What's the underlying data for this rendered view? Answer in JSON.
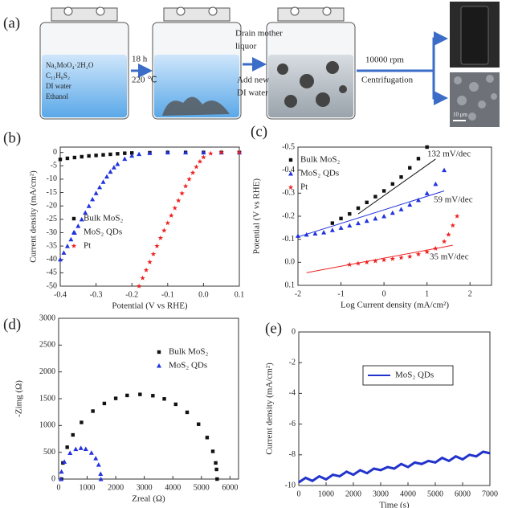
{
  "schematic": {
    "label": "(a)",
    "solution": [
      "Na₂MoO₄·2H₂O",
      "C₁₁H₈S₂",
      "DI water",
      "Ethanol"
    ],
    "step1": [
      "18 h",
      "220 ℃"
    ],
    "step2": [
      "Drain mother",
      "liquor",
      "Add new",
      "DI water"
    ],
    "step3": [
      "10000 rpm",
      "Centrifugation"
    ],
    "scale_bar": "10 μm"
  },
  "chart_data": [
    {
      "type": "scatter",
      "label": "(b)",
      "xlabel": "Potential (V vs RHE)",
      "ylabel": "Current density  (mA/cm²)",
      "xlim": [
        -0.4,
        0.1
      ],
      "xticks": [
        -0.4,
        -0.3,
        -0.2,
        -0.1,
        {
          "value": 0,
          "label": "0.0"
        },
        0.1
      ],
      "ylim": [
        -50,
        2
      ],
      "yticks": [
        0,
        -5,
        -10,
        -15,
        -20,
        -25,
        -30,
        -35,
        -40,
        -45,
        -50
      ],
      "series": [
        {
          "name": "Bulk MoS₂",
          "color": "#111111",
          "marker": "square",
          "x": [
            -0.4,
            -0.38,
            -0.36,
            -0.34,
            -0.32,
            -0.3,
            -0.28,
            -0.26,
            -0.24,
            -0.22,
            -0.2,
            -0.15,
            -0.1,
            -0.05,
            0,
            0.05,
            0.1
          ],
          "values": [
            -2.6,
            -2.2,
            -1.9,
            -1.6,
            -1.3,
            -1.1,
            -0.9,
            -0.7,
            -0.5,
            -0.3,
            -0.2,
            -0.1,
            0,
            0,
            0,
            0,
            0
          ]
        },
        {
          "name": "MoS₂ QDs",
          "color": "#2233dd",
          "marker": "triangle",
          "x": [
            -0.4,
            -0.39,
            -0.38,
            -0.37,
            -0.36,
            -0.35,
            -0.34,
            -0.33,
            -0.32,
            -0.31,
            -0.3,
            -0.29,
            -0.28,
            -0.27,
            -0.26,
            -0.25,
            -0.24,
            -0.22,
            -0.2,
            -0.18,
            -0.15,
            -0.1,
            -0.05,
            0,
            0.05,
            0.1
          ],
          "values": [
            -40,
            -37.5,
            -35,
            -32.5,
            -30,
            -27.5,
            -25,
            -22.5,
            -20,
            -17.5,
            -15.2,
            -13,
            -11,
            -9,
            -7.2,
            -5.6,
            -4.3,
            -2.4,
            -1.2,
            -0.6,
            -0.2,
            0,
            0,
            0,
            0,
            0
          ]
        },
        {
          "name": "Pt",
          "color": "#ee2222",
          "marker": "star",
          "x": [
            -0.18,
            -0.17,
            -0.16,
            -0.15,
            -0.14,
            -0.13,
            -0.12,
            -0.11,
            -0.1,
            -0.09,
            -0.08,
            -0.07,
            -0.06,
            -0.05,
            -0.04,
            -0.03,
            -0.02,
            -0.01,
            0,
            0.02,
            0.05,
            0.1
          ],
          "values": [
            -50,
            -47,
            -44,
            -41,
            -38,
            -35,
            -32,
            -29.2,
            -26.4,
            -23.6,
            -20.8,
            -18,
            -15.3,
            -12.6,
            -10,
            -7.6,
            -5.4,
            -3.4,
            -1.8,
            -0.4,
            0,
            0
          ]
        }
      ]
    },
    {
      "type": "scatter",
      "label": "(c)",
      "xlabel": "Log Current density  (mA/cm²)",
      "ylabel": "Potential (V vs RHE)",
      "xlim": [
        -2,
        2.5
      ],
      "xticks": [
        -2,
        -1,
        0,
        1,
        2
      ],
      "ylim": [
        0.1,
        -0.5
      ],
      "yticks": [
        0.1,
        {
          "value": 0,
          "label": "0.0"
        },
        -0.1,
        -0.2,
        -0.3,
        -0.4,
        -0.5
      ],
      "series": [
        {
          "name": "Bulk MoS₂",
          "color": "#111111",
          "marker": "square",
          "x": [
            -1.2,
            -1.0,
            -0.8,
            -0.6,
            -0.4,
            -0.2,
            0,
            0.2,
            0.4,
            0.6,
            0.8,
            1.0
          ],
          "values": [
            -0.17,
            -0.19,
            -0.21,
            -0.235,
            -0.26,
            -0.285,
            -0.31,
            -0.34,
            -0.37,
            -0.41,
            -0.45,
            -0.5
          ]
        },
        {
          "name": "MoS₂ QDs",
          "color": "#2233dd",
          "marker": "triangle",
          "x": [
            -2,
            -1.8,
            -1.6,
            -1.4,
            -1.2,
            -1,
            -0.8,
            -0.6,
            -0.4,
            -0.2,
            0,
            0.2,
            0.4,
            0.6,
            0.8,
            1,
            1.2,
            1.4
          ],
          "values": [
            -0.115,
            -0.12,
            -0.125,
            -0.13,
            -0.14,
            -0.15,
            -0.16,
            -0.17,
            -0.18,
            -0.19,
            -0.2,
            -0.215,
            -0.23,
            -0.25,
            -0.27,
            -0.3,
            -0.34,
            -0.4
          ]
        },
        {
          "name": "Pt",
          "color": "#ee2222",
          "marker": "star",
          "x": [
            -0.8,
            -0.6,
            -0.4,
            -0.2,
            0,
            0.2,
            0.4,
            0.6,
            0.8,
            1.0,
            1.2,
            1.4,
            1.5,
            1.6,
            1.7
          ],
          "values": [
            0.01,
            0.005,
            0,
            -0.005,
            -0.01,
            -0.015,
            -0.02,
            -0.025,
            -0.035,
            -0.045,
            -0.06,
            -0.09,
            -0.12,
            -0.16,
            -0.2
          ]
        }
      ],
      "fits": [
        {
          "color": "#111111",
          "x": [
            -0.6,
            1.2
          ],
          "values": [
            -0.21,
            -0.448
          ]
        },
        {
          "color": "#2233dd",
          "x": [
            -2,
            1.4
          ],
          "values": [
            -0.11,
            -0.31
          ]
        },
        {
          "color": "#ee2222",
          "x": [
            -1.8,
            1.6
          ],
          "values": [
            0.045,
            -0.074
          ]
        }
      ],
      "annotations": [
        "132 mV/dec",
        "59 mV/dec",
        "35 mV/dec"
      ]
    },
    {
      "type": "scatter",
      "label": "(d)",
      "xlabel": "Zreal (Ω)",
      "ylabel": "-Zimg (Ω)",
      "xlim": [
        0,
        6300
      ],
      "xticks": [
        0,
        1000,
        2000,
        3000,
        4000,
        5000,
        6000
      ],
      "ylim": [
        0,
        3000
      ],
      "yticks": [
        0,
        500,
        1000,
        1500,
        2000,
        2500,
        3000
      ],
      "series": [
        {
          "name": "Bulk MoS₂",
          "color": "#111111",
          "marker": "square",
          "x": [
            100,
            150,
            300,
            500,
            800,
            1200,
            1600,
            2000,
            2400,
            2850,
            3300,
            3700,
            4100,
            4500,
            4900,
            5200,
            5400,
            5500,
            5530,
            5550
          ],
          "values": [
            0,
            301,
            594,
            824,
            1057,
            1268,
            1411,
            1506,
            1561,
            1580,
            1556,
            1496,
            1396,
            1246,
            1024,
            775,
            517,
            301,
            180,
            0
          ]
        },
        {
          "name": "MoS₂ QDs",
          "color": "#2233dd",
          "marker": "triangle",
          "x": [
            80,
            100,
            200,
            400,
            600,
            780,
            950,
            1150,
            1300,
            1400,
            1470,
            1480
          ],
          "values": [
            0,
            138,
            325,
            487,
            561,
            580,
            563,
            492,
            388,
            269,
            97,
            0
          ]
        }
      ]
    },
    {
      "type": "line",
      "label": "(e)",
      "xlabel": "Time (s)",
      "ylabel": "Current density  (mA/cm²)",
      "xlim": [
        0,
        7000
      ],
      "xticks": [
        0,
        1000,
        2000,
        3000,
        4000,
        5000,
        6000,
        7000
      ],
      "ylim": [
        -10,
        0
      ],
      "yticks": [
        0,
        -2,
        -4,
        -6,
        -8,
        -10
      ],
      "series": [
        {
          "name": "MoS₂ QDs",
          "color": "#2233cc",
          "x": [
            0,
            250,
            500,
            750,
            1000,
            1250,
            1500,
            1750,
            2000,
            2250,
            2500,
            2750,
            3000,
            3250,
            3500,
            3750,
            4000,
            4250,
            4500,
            4750,
            5000,
            5250,
            5500,
            5750,
            6000,
            6250,
            6500,
            6750,
            7000
          ],
          "values": [
            -9.8,
            -9.5,
            -9.7,
            -9.4,
            -9.6,
            -9.3,
            -9.4,
            -9.1,
            -9.3,
            -9.0,
            -9.2,
            -8.9,
            -9.0,
            -8.8,
            -8.9,
            -8.6,
            -8.8,
            -8.5,
            -8.6,
            -8.4,
            -8.5,
            -8.2,
            -8.4,
            -8.1,
            -8.3,
            -8.0,
            -8.1,
            -7.8,
            -7.9
          ]
        }
      ]
    }
  ]
}
